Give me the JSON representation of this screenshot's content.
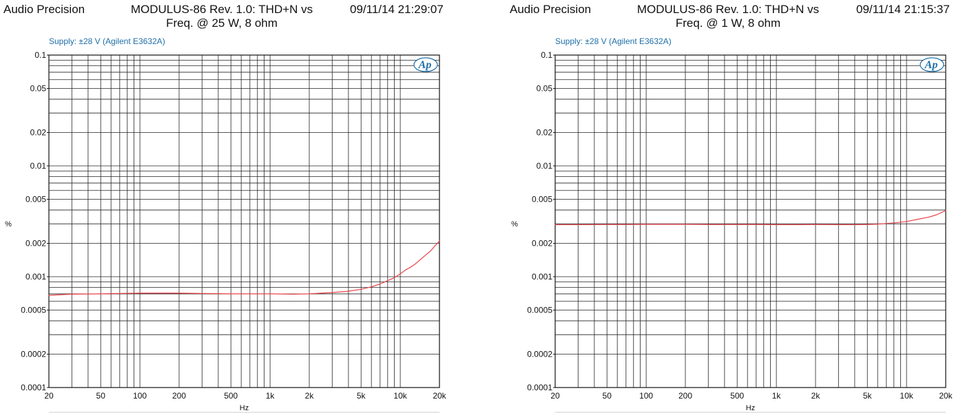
{
  "chart_data": [
    {
      "type": "line",
      "header": {
        "brand": "Audio Precision",
        "title_line1": "MODULUS-86 Rev. 1.0: THD+N vs",
        "title_line2": "Freq. @ 25 W, 8 ohm",
        "timestamp": "09/11/14 21:29:07"
      },
      "annotation": "Supply: ±28 V (Agilent E3632A)",
      "logo": "Ap",
      "xlabel": "Hz",
      "ylabel": "%",
      "xscale": "log",
      "yscale": "log",
      "xlim": [
        20,
        20000
      ],
      "ylim": [
        0.0001,
        0.1
      ],
      "x_ticks": [
        20,
        50,
        100,
        200,
        500,
        1000,
        2000,
        5000,
        10000,
        20000
      ],
      "x_tick_labels": [
        "20",
        "50",
        "100",
        "200",
        "500",
        "1k",
        "2k",
        "5k",
        "10k",
        "20k"
      ],
      "y_ticks": [
        0.0001,
        0.0002,
        0.0005,
        0.001,
        0.002,
        0.005,
        0.01,
        0.02,
        0.05,
        0.1
      ],
      "y_tick_labels": [
        "0.0001",
        "0.0002",
        "0.0005",
        "0.001",
        "0.002",
        "0.005",
        "0.01",
        "0.02",
        "0.05",
        "0.1"
      ],
      "grid": true,
      "series": [
        {
          "color": "#e8434a",
          "x": [
            20,
            30,
            50,
            70,
            100,
            150,
            200,
            300,
            500,
            700,
            1000,
            1500,
            2000,
            3000,
            4000,
            5000,
            6000,
            7000,
            8000,
            9000,
            10000,
            11000,
            12000,
            13000,
            15000,
            17000,
            20000
          ],
          "y": [
            0.00068,
            0.000695,
            0.0007,
            0.000705,
            0.00071,
            0.00071,
            0.00071,
            0.000705,
            0.0007,
            0.0007,
            0.0007,
            0.000695,
            0.0007,
            0.00072,
            0.00074,
            0.00077,
            0.00081,
            0.00086,
            0.00092,
            0.00098,
            0.00106,
            0.00115,
            0.00122,
            0.0013,
            0.0015,
            0.0017,
            0.0021
          ]
        }
      ]
    },
    {
      "type": "line",
      "header": {
        "brand": "Audio Precision",
        "title_line1": "MODULUS-86 Rev. 1.0: THD+N vs",
        "title_line2": "Freq. @ 1 W, 8 ohm",
        "timestamp": "09/11/14 21:15:37"
      },
      "annotation": "Supply: ±28 V (Agilent E3632A)",
      "logo": "Ap",
      "xlabel": "Hz",
      "ylabel": "%",
      "xscale": "log",
      "yscale": "log",
      "xlim": [
        20,
        20000
      ],
      "ylim": [
        0.0001,
        0.1
      ],
      "x_ticks": [
        20,
        50,
        100,
        200,
        500,
        1000,
        2000,
        5000,
        10000,
        20000
      ],
      "x_tick_labels": [
        "20",
        "50",
        "100",
        "200",
        "500",
        "1k",
        "2k",
        "5k",
        "10k",
        "20k"
      ],
      "y_ticks": [
        0.0001,
        0.0002,
        0.0005,
        0.001,
        0.002,
        0.005,
        0.01,
        0.02,
        0.05,
        0.1
      ],
      "y_tick_labels": [
        "0.0001",
        "0.0002",
        "0.0005",
        "0.001",
        "0.002",
        "0.005",
        "0.01",
        "0.02",
        "0.05",
        "0.1"
      ],
      "grid": true,
      "series": [
        {
          "color": "#e8434a",
          "x": [
            20,
            30,
            50,
            70,
            100,
            150,
            200,
            300,
            500,
            700,
            1000,
            1500,
            2000,
            3000,
            4000,
            5000,
            6000,
            7000,
            8000,
            10000,
            12000,
            15000,
            17000,
            20000
          ],
          "y": [
            0.00295,
            0.00295,
            0.00296,
            0.00296,
            0.00297,
            0.00297,
            0.00297,
            0.00296,
            0.00296,
            0.00296,
            0.00295,
            0.00295,
            0.00296,
            0.00295,
            0.00295,
            0.00296,
            0.00298,
            0.00302,
            0.00306,
            0.00315,
            0.00328,
            0.00346,
            0.00362,
            0.00395
          ]
        }
      ]
    }
  ]
}
